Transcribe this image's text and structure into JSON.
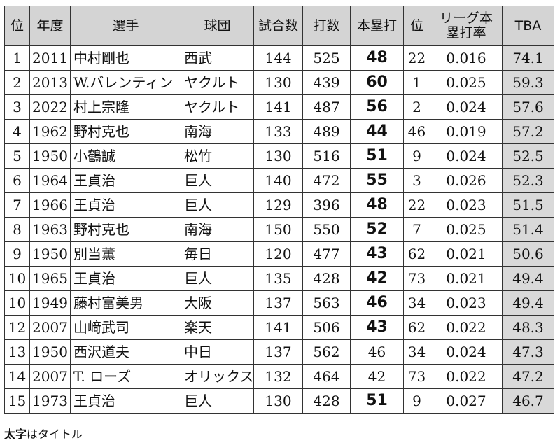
{
  "headers": {
    "rank": "位",
    "year": "年度",
    "player": "選手",
    "team": "球団",
    "games": "試合数",
    "at_bats": "打数",
    "home_runs": "本塁打",
    "hr_rank": "位",
    "league_rate_line1": "リーグ本",
    "league_rate_line2": "塁打率",
    "tba": "TBA"
  },
  "rows": [
    {
      "rank": "1",
      "year": "2011",
      "player": "中村剛也",
      "team": "西武",
      "games": "144",
      "at_bats": "525",
      "home_runs": "48",
      "title": true,
      "hr_rank": "22",
      "league_rate": "0.016",
      "tba": "74.1"
    },
    {
      "rank": "2",
      "year": "2013",
      "player": "W.バレンティン",
      "team": "ヤクルト",
      "games": "130",
      "at_bats": "439",
      "home_runs": "60",
      "title": true,
      "hr_rank": "1",
      "league_rate": "0.025",
      "tba": "59.3"
    },
    {
      "rank": "3",
      "year": "2022",
      "player": "村上宗隆",
      "team": "ヤクルト",
      "games": "141",
      "at_bats": "487",
      "home_runs": "56",
      "title": true,
      "hr_rank": "2",
      "league_rate": "0.024",
      "tba": "57.6"
    },
    {
      "rank": "4",
      "year": "1962",
      "player": "野村克也",
      "team": "南海",
      "games": "133",
      "at_bats": "489",
      "home_runs": "44",
      "title": true,
      "hr_rank": "46",
      "league_rate": "0.019",
      "tba": "57.2"
    },
    {
      "rank": "5",
      "year": "1950",
      "player": "小鶴誠",
      "team": "松竹",
      "games": "130",
      "at_bats": "516",
      "home_runs": "51",
      "title": true,
      "hr_rank": "9",
      "league_rate": "0.024",
      "tba": "52.5"
    },
    {
      "rank": "6",
      "year": "1964",
      "player": "王貞治",
      "team": "巨人",
      "games": "140",
      "at_bats": "472",
      "home_runs": "55",
      "title": true,
      "hr_rank": "3",
      "league_rate": "0.026",
      "tba": "52.3"
    },
    {
      "rank": "7",
      "year": "1966",
      "player": "王貞治",
      "team": "巨人",
      "games": "129",
      "at_bats": "396",
      "home_runs": "48",
      "title": true,
      "hr_rank": "22",
      "league_rate": "0.023",
      "tba": "51.5"
    },
    {
      "rank": "8",
      "year": "1963",
      "player": "野村克也",
      "team": "南海",
      "games": "150",
      "at_bats": "550",
      "home_runs": "52",
      "title": true,
      "hr_rank": "7",
      "league_rate": "0.025",
      "tba": "51.4"
    },
    {
      "rank": "9",
      "year": "1950",
      "player": "別当薫",
      "team": "毎日",
      "games": "120",
      "at_bats": "477",
      "home_runs": "43",
      "title": true,
      "hr_rank": "62",
      "league_rate": "0.021",
      "tba": "50.6"
    },
    {
      "rank": "10",
      "year": "1965",
      "player": "王貞治",
      "team": "巨人",
      "games": "135",
      "at_bats": "428",
      "home_runs": "42",
      "title": true,
      "hr_rank": "73",
      "league_rate": "0.021",
      "tba": "49.4"
    },
    {
      "rank": "10",
      "year": "1949",
      "player": "藤村富美男",
      "team": "大阪",
      "games": "137",
      "at_bats": "563",
      "home_runs": "46",
      "title": true,
      "hr_rank": "34",
      "league_rate": "0.023",
      "tba": "49.4"
    },
    {
      "rank": "12",
      "year": "2007",
      "player": "山﨑武司",
      "team": "楽天",
      "games": "141",
      "at_bats": "506",
      "home_runs": "43",
      "title": true,
      "hr_rank": "62",
      "league_rate": "0.022",
      "tba": "48.3"
    },
    {
      "rank": "13",
      "year": "1950",
      "player": "西沢道夫",
      "team": "中日",
      "games": "137",
      "at_bats": "562",
      "home_runs": "46",
      "title": false,
      "hr_rank": "34",
      "league_rate": "0.024",
      "tba": "47.3"
    },
    {
      "rank": "14",
      "year": "2007",
      "player": "T. ローズ",
      "team": "オリックス",
      "games": "132",
      "at_bats": "464",
      "home_runs": "42",
      "title": false,
      "hr_rank": "73",
      "league_rate": "0.022",
      "tba": "47.2"
    },
    {
      "rank": "15",
      "year": "1973",
      "player": "王貞治",
      "team": "巨人",
      "games": "130",
      "at_bats": "428",
      "home_runs": "51",
      "title": true,
      "hr_rank": "9",
      "league_rate": "0.027",
      "tba": "46.7"
    }
  ],
  "note": {
    "bold": "太字",
    "rest": "はタイトル"
  }
}
